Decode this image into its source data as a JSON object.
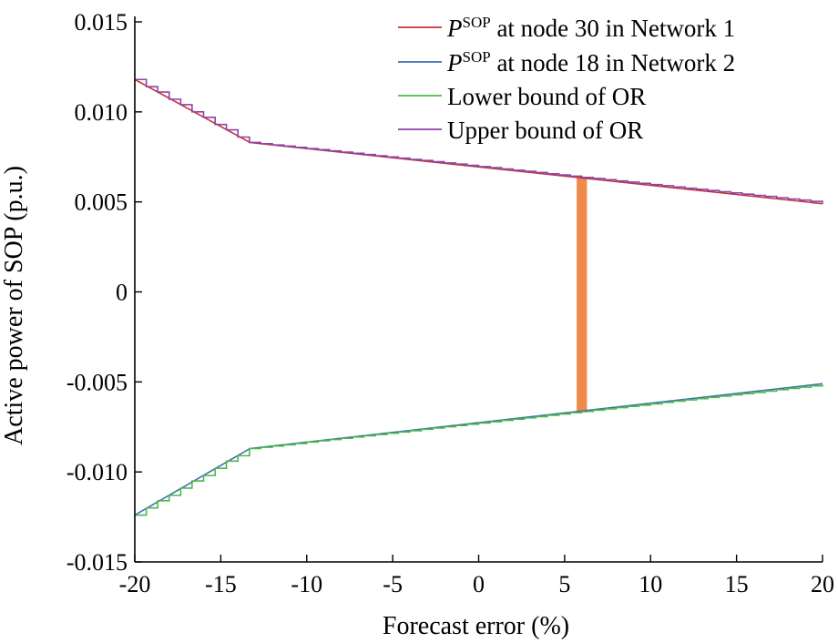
{
  "chart_data": {
    "type": "line",
    "xlabel": "Forecast error (%)",
    "ylabel": "Active power of SOP (p.u.)",
    "xlim": [
      -20,
      20
    ],
    "ylim": [
      -0.015,
      0.015
    ],
    "xticks": [
      -20,
      -15,
      -10,
      -5,
      0,
      5,
      10,
      15,
      20
    ],
    "xtick_labels": [
      "-20",
      "-15",
      "-10",
      "-5",
      "0",
      "5",
      "10",
      "15",
      "20"
    ],
    "yticks": [
      0.015,
      0.01,
      0.005,
      0,
      -0.005,
      -0.01,
      -0.015
    ],
    "ytick_labels": [
      "0.015",
      "0.010",
      "0.005",
      "0",
      "-0.005",
      "-0.010",
      "-0.015"
    ],
    "legend_position": "top-right",
    "series": [
      {
        "name": "P^SOP at node 30 in Network 1",
        "legend_main": "P",
        "legend_sup": "SOP",
        "legend_rest": " at node 30 in Network 1",
        "color": "#c8343a",
        "style": "line",
        "x": [
          -20,
          -13.3,
          20
        ],
        "y": [
          0.0118,
          0.0083,
          0.0049
        ]
      },
      {
        "name": "P^SOP at node 18 in Network 2",
        "legend_main": "P",
        "legend_sup": "SOP",
        "legend_rest": " at node 18 in Network 2",
        "color": "#3c6fb0",
        "style": "line",
        "x": [
          -20,
          -13.3,
          20
        ],
        "y": [
          -0.0124,
          -0.0087,
          -0.0051
        ]
      },
      {
        "name": "Lower bound of OR",
        "color": "#4cb848",
        "style": "step",
        "x": [
          -20,
          -19.33,
          -18.67,
          -18,
          -17.33,
          -16.67,
          -16,
          -15.33,
          -14.67,
          -14,
          -13.33,
          -12.67,
          -12,
          -11.33,
          -10.67,
          -10,
          -9.33,
          -8.67,
          -8,
          -7.33,
          -6.67,
          -6,
          -5.33,
          -4.67,
          -4,
          -3.33,
          -2.67,
          -2,
          -1.33,
          -0.67,
          0,
          0.67,
          1.33,
          2,
          2.67,
          3.33,
          4,
          4.67,
          5.33,
          6,
          6.67,
          7.33,
          8,
          8.67,
          9.33,
          10,
          10.67,
          11.33,
          12,
          12.67,
          13.33,
          14,
          14.67,
          15.33,
          16,
          16.67,
          17.33,
          18,
          18.67,
          19.33,
          20
        ],
        "y": [
          -0.0124,
          -0.012,
          -0.0116,
          -0.0113,
          -0.0109,
          -0.0105,
          -0.0102,
          -0.0098,
          -0.0094,
          -0.0091,
          -0.0087,
          -0.00863,
          -0.00856,
          -0.00849,
          -0.00842,
          -0.00834,
          -0.00827,
          -0.0082,
          -0.00813,
          -0.00806,
          -0.00799,
          -0.00792,
          -0.00785,
          -0.00778,
          -0.00771,
          -0.00763,
          -0.00756,
          -0.00749,
          -0.00742,
          -0.00735,
          -0.00728,
          -0.00721,
          -0.00714,
          -0.00707,
          -0.007,
          -0.00693,
          -0.00685,
          -0.00678,
          -0.00671,
          -0.00664,
          -0.00657,
          -0.0065,
          -0.00643,
          -0.00636,
          -0.00629,
          -0.00622,
          -0.00614,
          -0.00607,
          -0.006,
          -0.00593,
          -0.00586,
          -0.00579,
          -0.00572,
          -0.00565,
          -0.00558,
          -0.00551,
          -0.00543,
          -0.00536,
          -0.00529,
          -0.00522,
          -0.00515
        ]
      },
      {
        "name": "Upper bound of OR",
        "color": "#8b44a8",
        "style": "step",
        "x": [
          -20,
          -19.33,
          -18.67,
          -18,
          -17.33,
          -16.67,
          -16,
          -15.33,
          -14.67,
          -14,
          -13.33,
          -12.67,
          -12,
          -11.33,
          -10.67,
          -10,
          -9.33,
          -8.67,
          -8,
          -7.33,
          -6.67,
          -6,
          -5.33,
          -4.67,
          -4,
          -3.33,
          -2.67,
          -2,
          -1.33,
          -0.67,
          0,
          0.67,
          1.33,
          2,
          2.67,
          3.33,
          4,
          4.67,
          5.33,
          6,
          6.67,
          7.33,
          8,
          8.67,
          9.33,
          10,
          10.67,
          11.33,
          12,
          12.67,
          13.33,
          14,
          14.67,
          15.33,
          16,
          16.67,
          17.33,
          18,
          18.67,
          19.33,
          20
        ],
        "y": [
          0.0118,
          0.0114,
          0.0111,
          0.0107,
          0.0104,
          0.01,
          0.0097,
          0.0093,
          0.009,
          0.0086,
          0.0083,
          0.00823,
          0.00816,
          0.0081,
          0.00803,
          0.00796,
          0.0079,
          0.00783,
          0.00776,
          0.0077,
          0.00763,
          0.00756,
          0.0075,
          0.00743,
          0.00736,
          0.0073,
          0.00723,
          0.00716,
          0.0071,
          0.00703,
          0.00696,
          0.0069,
          0.00683,
          0.00676,
          0.0067,
          0.00663,
          0.00656,
          0.0065,
          0.00643,
          0.00636,
          0.0063,
          0.00623,
          0.00616,
          0.0061,
          0.00603,
          0.00596,
          0.0059,
          0.00583,
          0.00576,
          0.0057,
          0.00563,
          0.00556,
          0.0055,
          0.00543,
          0.00536,
          0.0053,
          0.00523,
          0.00516,
          0.0051,
          0.00503,
          0.0049
        ]
      }
    ],
    "highlight": {
      "color": "#ef8a4a",
      "x_range": [
        5.7,
        6.3
      ],
      "y_range": [
        -0.0067,
        0.0064
      ]
    }
  }
}
